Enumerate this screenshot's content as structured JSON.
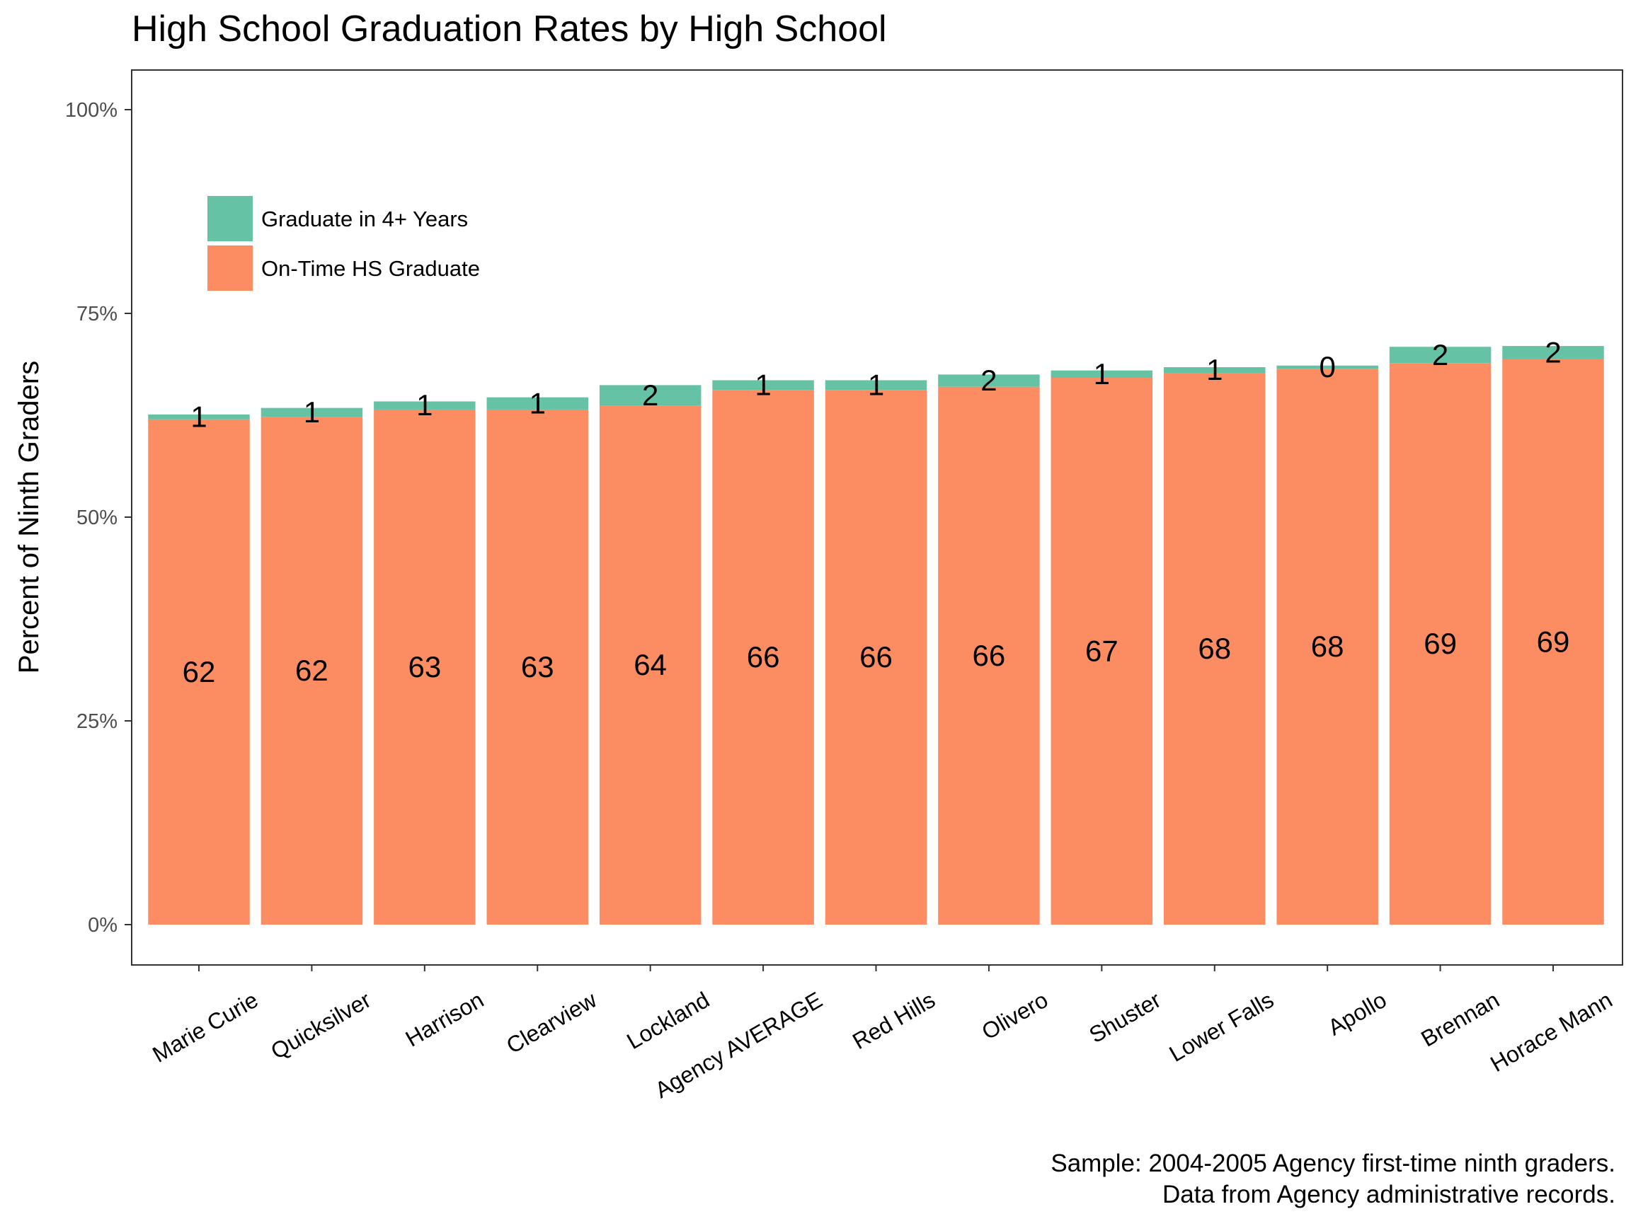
{
  "chart_data": {
    "type": "bar",
    "stacked": true,
    "title": "High School Graduation Rates by High School",
    "ylabel": "Percent of Ninth Graders",
    "xlabel": "",
    "ylim": [
      0,
      100
    ],
    "y_ticks": [
      "0%",
      "25%",
      "50%",
      "75%",
      "100%"
    ],
    "y_tick_values": [
      0,
      25,
      50,
      75,
      100
    ],
    "categories": [
      "Marie Curie",
      "Quicksilver",
      "Harrison",
      "Clearview",
      "Lockland",
      "Agency AVERAGE",
      "Red Hills",
      "Olivero",
      "Shuster",
      "Lower Falls",
      "Apollo",
      "Brennan",
      "Horace Mann"
    ],
    "series": [
      {
        "name": "On-Time HS Graduate",
        "color": "#fc8d62",
        "values": [
          62,
          62.3,
          63.2,
          63.2,
          63.7,
          65.6,
          65.6,
          66.0,
          67.1,
          67.7,
          68.2,
          68.9,
          69.4
        ],
        "labels": [
          "62",
          "62",
          "63",
          "63",
          "64",
          "66",
          "66",
          "66",
          "67",
          "68",
          "68",
          "69",
          "69"
        ]
      },
      {
        "name": "Graduate in 4+ Years",
        "color": "#66c2a5",
        "values": [
          0.6,
          1.1,
          1.0,
          1.5,
          2.5,
          1.2,
          1.2,
          1.5,
          0.9,
          0.7,
          0.4,
          2.0,
          1.6
        ],
        "labels": [
          "1",
          "1",
          "1",
          "1",
          "2",
          "1",
          "1",
          "2",
          "1",
          "1",
          "0",
          "2",
          "2"
        ]
      }
    ],
    "legend": {
      "placement": "top-left inside plot",
      "entries": [
        "Graduate in 4+ Years",
        "On-Time HS Graduate"
      ]
    },
    "grid": false,
    "caption": [
      "Sample: 2004-2005 Agency first-time ninth graders.",
      "Data from Agency administrative records."
    ]
  }
}
